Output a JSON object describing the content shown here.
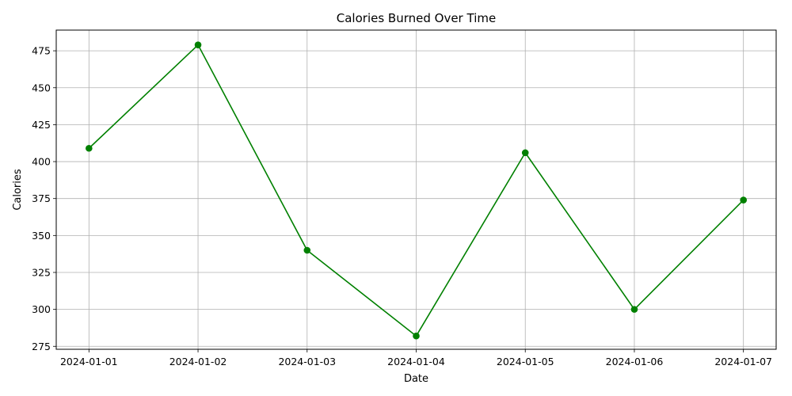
{
  "chart_data": {
    "type": "line",
    "title": "Calories Burned Over Time",
    "xlabel": "Date",
    "ylabel": "Calories",
    "x": [
      "2024-01-01",
      "2024-01-02",
      "2024-01-03",
      "2024-01-04",
      "2024-01-05",
      "2024-01-06",
      "2024-01-07"
    ],
    "series": [
      {
        "values": [
          409,
          479,
          340,
          282,
          406,
          300,
          374
        ],
        "color": "#008000",
        "marker": "circle"
      }
    ],
    "ylim": [
      273,
      489
    ],
    "yticks": [
      275,
      300,
      325,
      350,
      375,
      400,
      425,
      450,
      475
    ],
    "grid": true,
    "legend": "none"
  }
}
